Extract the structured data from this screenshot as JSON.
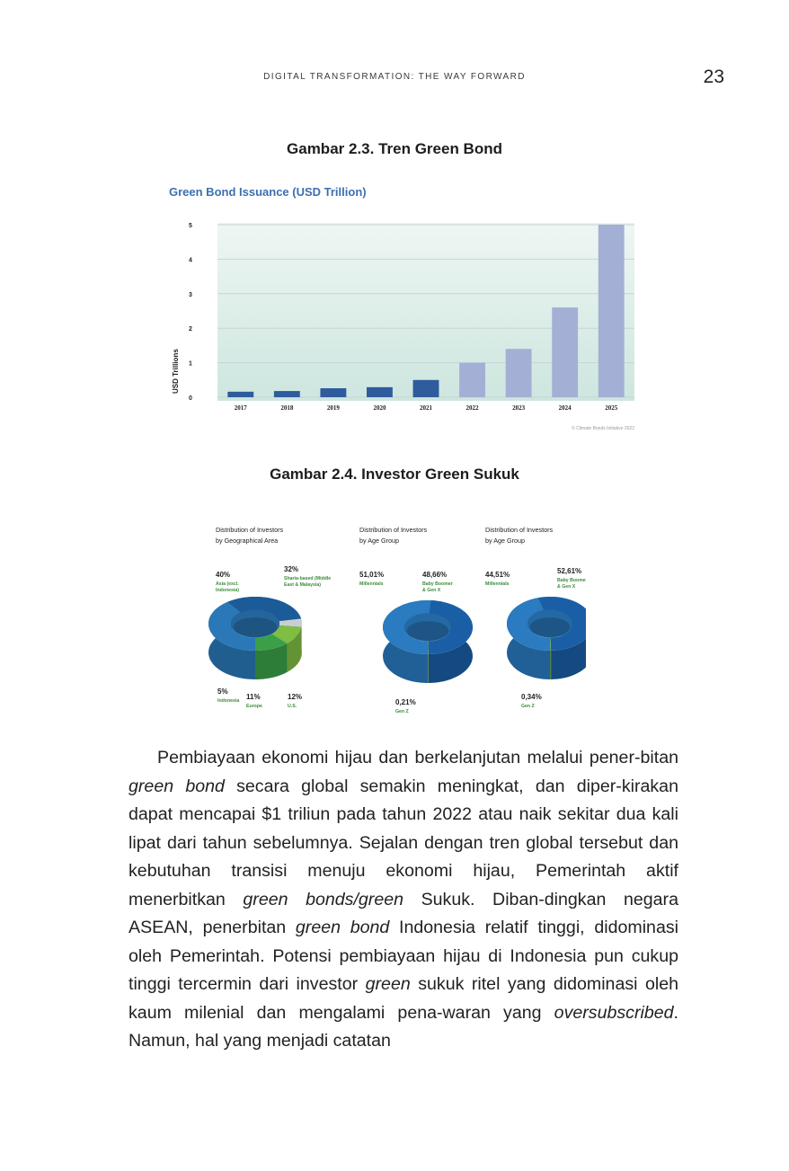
{
  "header": {
    "running_title": "DIGITAL TRANSFORMATION: THE WAY FORWARD",
    "page_number": "23"
  },
  "figure_1": {
    "caption": "Gambar 2.3. Tren Green Bond"
  },
  "figure_2": {
    "caption": "Gambar 2.4. Investor Green Sukuk",
    "panels": [
      {
        "title_line1": "Distribution of Investors",
        "title_line2": "by Geographical Area",
        "labels": [
          {
            "pct": "40%",
            "text1": "Asia (excl.",
            "text2": "Indonesia)"
          },
          {
            "pct": "32%",
            "text1": "Sharia-based (Middle",
            "text2": "East & Malaysia)"
          },
          {
            "pct": "5%",
            "text1": "Indonesia",
            "text2": ""
          },
          {
            "pct": "11%",
            "text1": "Europe",
            "text2": ""
          },
          {
            "pct": "12%",
            "text1": "U.S.",
            "text2": ""
          }
        ]
      },
      {
        "title_line1": "Distribution of Investors",
        "title_line2": "by Age Group",
        "labels": [
          {
            "pct": "51,01%",
            "text1": "Millennials",
            "text2": ""
          },
          {
            "pct": "48,66%",
            "text1": "Baby Boomer",
            "text2": "& Gen X"
          },
          {
            "pct": "0,21%",
            "text1": "Gen Z",
            "text2": ""
          }
        ]
      },
      {
        "title_line1": "Distribution of Investors",
        "title_line2": "by Age Group",
        "labels": [
          {
            "pct": "44,51%",
            "text1": "Millennials",
            "text2": ""
          },
          {
            "pct": "52,61%",
            "text1": "Baby Boomer",
            "text2": "& Gen X"
          },
          {
            "pct": "0,34%",
            "text1": "Gen Z",
            "text2": ""
          }
        ]
      }
    ]
  },
  "chart_data": [
    {
      "type": "bar",
      "title": "Green Bond Issuance (USD Trillion)",
      "ylabel": "USD Trillions",
      "xlabel": "",
      "categories": [
        "2017",
        "2018",
        "2019",
        "2020",
        "2021",
        "2022",
        "2023",
        "2024",
        "2025"
      ],
      "values": [
        0.16,
        0.18,
        0.26,
        0.29,
        0.5,
        1.0,
        1.4,
        2.6,
        5.0
      ],
      "projected_from_index": 5,
      "ylim": [
        0,
        5
      ],
      "yticks": [
        "0",
        "1",
        "2",
        "3",
        "4",
        "5"
      ],
      "grid": true,
      "source": "© Climate Bonds Initiative 2022",
      "colors": {
        "actual": "#2e5c9c",
        "projected": "#a4afd6",
        "title": "#3d6fb0",
        "plot_bg_top": "#eaf4f0",
        "plot_bg_bottom": "#cfe8e1"
      }
    },
    {
      "type": "pie",
      "title": "Distribution of Investors by Geographical Area",
      "categories": [
        "Asia (excl. Indonesia)",
        "Sharia-based (Middle East & Malaysia)",
        "Indonesia",
        "Europe",
        "U.S."
      ],
      "values": [
        40,
        32,
        5,
        11,
        12
      ],
      "colors": [
        "#2a78b8",
        "#1b5b98",
        "#c8cfd4",
        "#7fbd43",
        "#3a9f48"
      ]
    },
    {
      "type": "pie",
      "title": "Distribution of Investors by Age Group",
      "categories": [
        "Millennials",
        "Baby Boomer & Gen X",
        "Gen Z"
      ],
      "values": [
        51.01,
        48.66,
        0.21
      ],
      "colors": [
        "#2a7bc0",
        "#1a5fa6",
        "#6aa35a"
      ]
    },
    {
      "type": "pie",
      "title": "Distribution of Investors by Age Group",
      "categories": [
        "Millennials",
        "Baby Boomer & Gen X",
        "Gen Z"
      ],
      "values": [
        44.51,
        52.61,
        0.34
      ],
      "colors": [
        "#2a7bc0",
        "#1a5fa6",
        "#6aa35a"
      ]
    }
  ],
  "body": {
    "s1": "Pembiayaan ekonomi hijau dan berkelanjutan melalui pener-bitan ",
    "s2": "green bond",
    "s3": " secara global semakin meningkat, dan diper-kirakan dapat mencapai $1 triliun pada tahun 2022 atau naik sekitar dua kali lipat dari tahun sebelumnya. Sejalan dengan tren global tersebut dan kebutuhan transisi menuju ekonomi hijau, Pemerintah aktif menerbitkan ",
    "s4": "green bonds/green",
    "s5": " Sukuk. Diban-dingkan negara ASEAN, penerbitan ",
    "s6": "green bond",
    "s7": " Indonesia relatif tinggi, didominasi oleh Pemerintah. Potensi pembiayaan hijau di Indonesia pun cukup tinggi tercermin dari investor ",
    "s8": "green",
    "s9": " sukuk ritel yang didominasi oleh kaum milenial dan mengalami pena-waran yang ",
    "s10": "oversubscribed",
    "s11": ". Namun, hal yang menjadi catatan"
  }
}
